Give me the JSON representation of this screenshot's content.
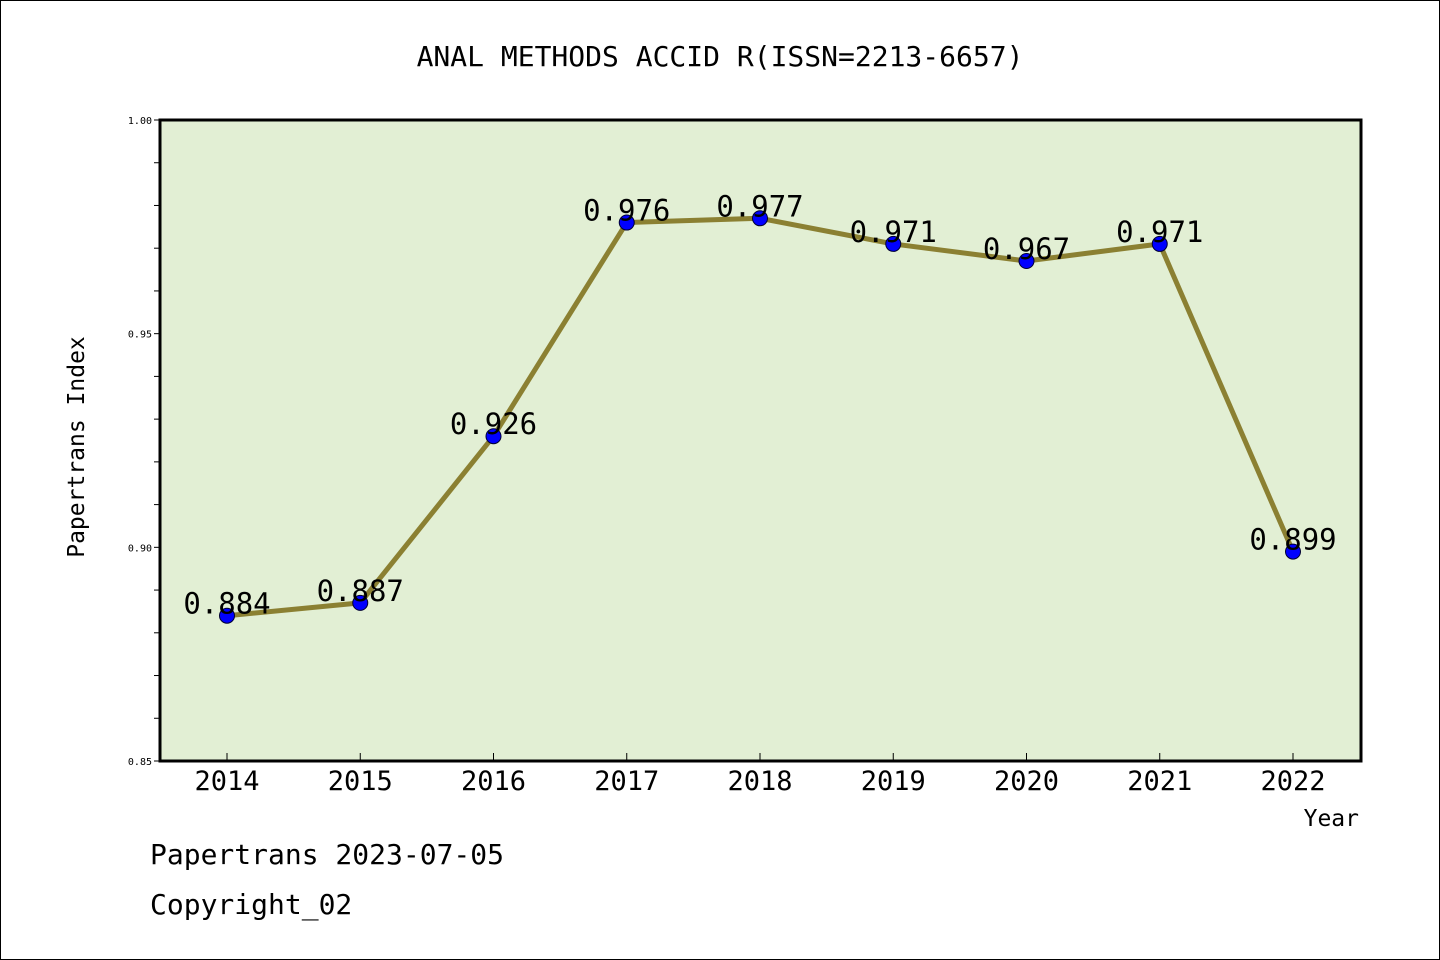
{
  "chart_data": {
    "type": "line",
    "title": "ANAL METHODS ACCID R(ISSN=2213-6657)",
    "xlabel": "Year",
    "ylabel": "Papertrans Index",
    "categories": [
      "2014",
      "2015",
      "2016",
      "2017",
      "2018",
      "2019",
      "2020",
      "2021",
      "2022"
    ],
    "series": [
      {
        "values": [
          0.884,
          0.887,
          0.926,
          0.976,
          0.977,
          0.971,
          0.967,
          0.971,
          0.899
        ]
      }
    ],
    "data_labels": [
      "0.884",
      "0.887",
      "0.926",
      "0.976",
      "0.977",
      "0.971",
      "0.967",
      "0.971",
      "0.899"
    ],
    "ylim": [
      0.85,
      1.0
    ],
    "y_ticks": [
      "0.85",
      "0.90",
      "0.95",
      "1.00"
    ],
    "grid": false,
    "colors": {
      "plot_background": "#e2efd4",
      "line": "#8b8032",
      "marker": "#0000ff"
    }
  },
  "footer": {
    "line1": "Papertrans 2023-07-05",
    "line2": "Copyright_02"
  }
}
